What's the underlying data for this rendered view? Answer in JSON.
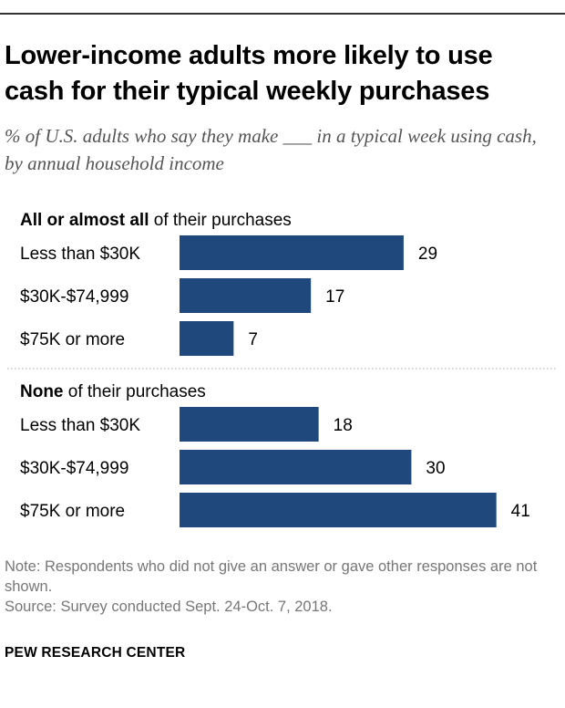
{
  "title": "Lower-income adults more likely to use cash for their typical weekly purchases",
  "subtitle": "% of U.S. adults who say they make ___ in a typical week using cash, by annual household income",
  "chart_data": {
    "type": "bar",
    "orientation": "horizontal",
    "bar_color": "#1f487c",
    "groups": [
      {
        "label_bold": "All or almost all",
        "label_rest": " of their purchases",
        "categories": [
          "Less than $30K",
          "$30K-$74,999",
          "$75K or more"
        ],
        "values": [
          29,
          17,
          7
        ]
      },
      {
        "label_bold": "None",
        "label_rest": " of their purchases",
        "categories": [
          "Less than $30K",
          "$30K-$74,999",
          "$75K or more"
        ],
        "values": [
          18,
          30,
          41
        ]
      }
    ]
  },
  "note": "Note: Respondents who did not give an answer or gave other responses are not shown.",
  "source": "Source: Survey conducted Sept. 24-Oct. 7, 2018.",
  "brand": "PEW RESEARCH CENTER"
}
